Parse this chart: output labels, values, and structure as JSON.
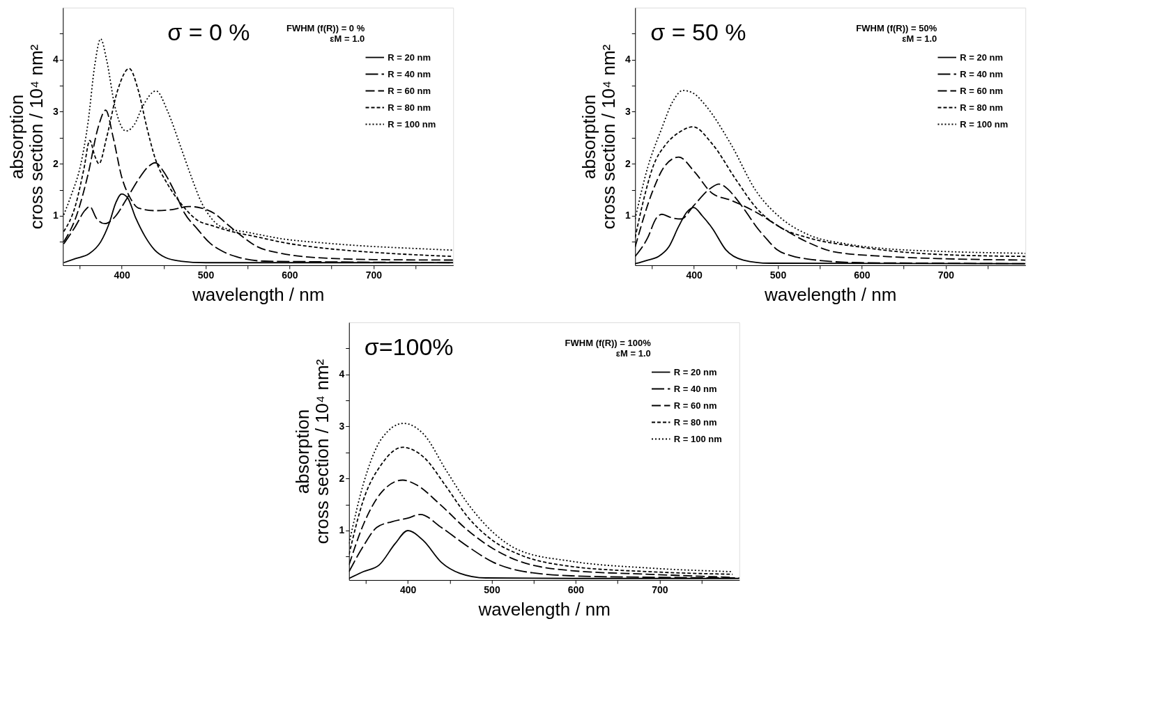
{
  "chart_data": [
    {
      "type": "line",
      "xlabel": "wavelength / nm",
      "ylabel": "absorption\ncross section / 10⁴ nm²",
      "legend_title": "FWHM (f(R))  =  0 %\nεM  =  1.0",
      "annotations": [
        "σ = 0 %"
      ],
      "legend": "top right",
      "grid": false,
      "xlim": [
        330,
        795
      ],
      "ylim": [
        0.05,
        5.0
      ],
      "xticks": [
        {
          "value": 350,
          "label": null
        },
        400,
        {
          "value": 450,
          "label": null
        },
        500,
        {
          "value": 550,
          "label": null
        },
        600,
        {
          "value": 650,
          "label": null
        },
        700,
        {
          "value": 750,
          "label": null
        }
      ],
      "yticks": [
        {
          "value": 0.5,
          "label": null
        },
        1,
        {
          "value": 1.5,
          "label": null
        },
        2,
        {
          "value": 2.5,
          "label": null
        },
        3,
        {
          "value": 3.5,
          "label": null
        },
        4,
        {
          "value": 4.5,
          "label": null
        }
      ],
      "series": [
        {
          "name": "R = 20 nm",
          "color": "#000000",
          "line_style": "solid",
          "x": [
            331,
            345,
            361,
            375,
            385,
            393,
            400,
            407,
            417,
            428,
            439,
            452,
            470,
            500,
            600,
            795
          ],
          "values": [
            0.1,
            0.18,
            0.27,
            0.5,
            0.85,
            1.25,
            1.42,
            1.35,
            0.95,
            0.6,
            0.35,
            0.2,
            0.13,
            0.1,
            0.1,
            0.1
          ]
        },
        {
          "name": "R = 40 nm",
          "color": "#000000",
          "line_style": "dashed",
          "x": [
            331,
            345,
            356,
            362,
            370,
            380,
            393,
            405,
            420,
            432,
            440,
            450,
            462,
            475,
            490,
            505,
            520,
            540,
            570,
            620,
            795
          ],
          "values": [
            0.46,
            0.8,
            1.1,
            1.18,
            0.95,
            0.85,
            1.0,
            1.3,
            1.7,
            1.95,
            2.02,
            1.85,
            1.5,
            1.05,
            0.75,
            0.48,
            0.32,
            0.2,
            0.13,
            0.12,
            0.1
          ]
        },
        {
          "name": "R = 60 nm",
          "color": "#000000",
          "line_style": "dashed",
          "x": [
            331,
            345,
            360,
            372,
            381,
            390,
            400,
            410,
            420,
            440,
            460,
            480,
            495,
            510,
            525,
            540,
            560,
            590,
            630,
            700,
            795
          ],
          "values": [
            0.5,
            0.95,
            1.8,
            2.7,
            3.03,
            2.5,
            1.75,
            1.35,
            1.15,
            1.1,
            1.12,
            1.18,
            1.15,
            1.05,
            0.85,
            0.65,
            0.42,
            0.28,
            0.2,
            0.16,
            0.15
          ]
        },
        {
          "name": "R = 80 nm",
          "color": "#000000",
          "line_style": "dashed",
          "x": [
            331,
            345,
            355,
            362,
            368,
            373,
            382,
            395,
            409,
            420,
            430,
            440,
            455,
            470,
            489,
            510,
            533,
            560,
            595,
            640,
            690,
            740,
            795
          ],
          "values": [
            0.7,
            1.2,
            1.9,
            2.45,
            2.15,
            2.0,
            2.5,
            3.4,
            3.83,
            3.4,
            2.7,
            2.1,
            1.6,
            1.25,
            0.93,
            0.8,
            0.69,
            0.6,
            0.48,
            0.38,
            0.31,
            0.26,
            0.22
          ]
        },
        {
          "name": "R = 100 nm",
          "color": "#000000",
          "line_style": "dotted",
          "x": [
            331,
            340,
            351,
            360,
            368,
            375,
            382,
            392,
            405,
            415,
            425,
            441,
            455,
            470,
            483,
            495,
            507,
            520,
            548,
            595,
            640,
            690,
            740,
            795
          ],
          "values": [
            1.02,
            1.4,
            1.97,
            2.8,
            3.9,
            4.4,
            4.0,
            3.1,
            2.63,
            2.75,
            3.1,
            3.4,
            3.0,
            2.34,
            1.75,
            1.26,
            0.95,
            0.78,
            0.69,
            0.55,
            0.48,
            0.42,
            0.38,
            0.34
          ]
        }
      ]
    },
    {
      "type": "line",
      "xlabel": "wavelength / nm",
      "ylabel": "absorption\ncross section / 10⁴ nm²",
      "legend_title": "FWHM (f(R))  =  50%\nεM  =  1.0",
      "annotations": [
        "σ = 50 %"
      ],
      "legend": "top right",
      "grid": false,
      "xlim": [
        330,
        795
      ],
      "ylim": [
        0.05,
        5.0
      ],
      "xticks": [
        {
          "value": 350,
          "label": null
        },
        400,
        {
          "value": 450,
          "label": null
        },
        500,
        {
          "value": 550,
          "label": null
        },
        600,
        {
          "value": 650,
          "label": null
        },
        700,
        {
          "value": 750,
          "label": null
        }
      ],
      "yticks": [
        {
          "value": 0.5,
          "label": null
        },
        1,
        {
          "value": 1.5,
          "label": null
        },
        2,
        {
          "value": 2.5,
          "label": null
        },
        3,
        {
          "value": 3.5,
          "label": null
        },
        4,
        {
          "value": 4.5,
          "label": null
        }
      ],
      "series": [
        {
          "name": "R = 20 nm",
          "color": "#000000",
          "line_style": "solid",
          "x": [
            330,
            345,
            358,
            370,
            382,
            392,
            400,
            410,
            422,
            438,
            459,
            490,
            795
          ],
          "values": [
            0.08,
            0.15,
            0.22,
            0.4,
            0.8,
            1.08,
            1.16,
            1.0,
            0.76,
            0.35,
            0.15,
            0.09,
            0.08
          ]
        },
        {
          "name": "R = 40 nm",
          "color": "#000000",
          "line_style": "dashed",
          "x": [
            330,
            345,
            355,
            362,
            372,
            385,
            400,
            419,
            430,
            440,
            450,
            462,
            474,
            487,
            499,
            515,
            536,
            598,
            700,
            795
          ],
          "values": [
            0.22,
            0.58,
            0.95,
            1.03,
            0.97,
            0.94,
            1.2,
            1.52,
            1.61,
            1.52,
            1.34,
            1.08,
            0.8,
            0.55,
            0.35,
            0.24,
            0.17,
            0.1,
            0.09,
            0.08
          ]
        },
        {
          "name": "R = 60 nm",
          "color": "#000000",
          "line_style": "dashed",
          "x": [
            330,
            351,
            365,
            382,
            401,
            422,
            444,
            474,
            505,
            536,
            567,
            628,
            690,
            795
          ],
          "values": [
            0.4,
            1.48,
            1.95,
            2.13,
            1.84,
            1.43,
            1.3,
            1.07,
            0.76,
            0.49,
            0.31,
            0.22,
            0.18,
            0.15
          ]
        },
        {
          "name": "R = 80 nm",
          "color": "#000000",
          "line_style": "dashed",
          "x": [
            330,
            340,
            351,
            367,
            382,
            399,
            422,
            450,
            474,
            505,
            536,
            598,
            690,
            795
          ],
          "values": [
            0.58,
            1.3,
            1.93,
            2.38,
            2.6,
            2.71,
            2.38,
            1.7,
            1.16,
            0.76,
            0.58,
            0.4,
            0.26,
            0.22
          ]
        },
        {
          "name": "R = 100 nm",
          "color": "#000000",
          "line_style": "dotted",
          "x": [
            330,
            345,
            361,
            375,
            387,
            400,
            413,
            444,
            474,
            505,
            536,
            582,
            628,
            690,
            795
          ],
          "values": [
            0.94,
            1.93,
            2.65,
            3.2,
            3.41,
            3.35,
            3.14,
            2.38,
            1.48,
            0.94,
            0.64,
            0.46,
            0.37,
            0.32,
            0.28
          ]
        }
      ]
    },
    {
      "type": "line",
      "xlabel": "wavelength / nm",
      "ylabel": "absorption\ncross section / 10⁴ nm²",
      "legend_title": "FWHM (f(R))  =  100%\nεM  =  1.0",
      "annotations": [
        "σ=100%"
      ],
      "legend": "top right",
      "grid": false,
      "xlim": [
        330,
        795
      ],
      "ylim": [
        0.05,
        5.0
      ],
      "xticks": [
        {
          "value": 350,
          "label": null
        },
        400,
        {
          "value": 450,
          "label": null
        },
        500,
        {
          "value": 550,
          "label": null
        },
        600,
        {
          "value": 650,
          "label": null
        },
        700,
        {
          "value": 750,
          "label": null
        }
      ],
      "yticks": [
        {
          "value": 0.5,
          "label": null
        },
        1,
        {
          "value": 1.5,
          "label": null
        },
        2,
        {
          "value": 2.5,
          "label": null
        },
        3,
        {
          "value": 3.5,
          "label": null
        },
        4,
        {
          "value": 4.5,
          "label": null
        }
      ],
      "series": [
        {
          "name": "R = 20 nm",
          "color": "#000000",
          "line_style": "solid",
          "x": [
            330,
            347,
            366,
            385,
            400,
            419,
            440,
            462,
            493,
            600,
            795
          ],
          "values": [
            0.08,
            0.21,
            0.34,
            0.75,
            1.0,
            0.8,
            0.39,
            0.18,
            0.09,
            0.08,
            0.08
          ]
        },
        {
          "name": "R = 40 nm",
          "color": "#000000",
          "line_style": "dashed",
          "x": [
            330,
            347,
            363,
            381,
            400,
            415,
            440,
            471,
            502,
            533,
            595,
            700,
            795
          ],
          "values": [
            0.21,
            0.7,
            1.06,
            1.17,
            1.24,
            1.31,
            1.06,
            0.7,
            0.39,
            0.23,
            0.13,
            0.1,
            0.09
          ]
        },
        {
          "name": "R = 60 nm",
          "color": "#000000",
          "line_style": "dashed",
          "x": [
            330,
            347,
            369,
            394,
            409,
            440,
            471,
            502,
            533,
            595,
            688,
            787
          ],
          "values": [
            0.34,
            1.11,
            1.74,
            1.97,
            1.89,
            1.48,
            1.01,
            0.65,
            0.41,
            0.23,
            0.16,
            0.1
          ]
        },
        {
          "name": "R = 80 nm",
          "color": "#000000",
          "line_style": "dashed",
          "x": [
            330,
            347,
            369,
            394,
            419,
            446,
            471,
            502,
            533,
            595,
            688,
            787
          ],
          "values": [
            0.54,
            1.58,
            2.28,
            2.6,
            2.41,
            1.84,
            1.27,
            0.8,
            0.54,
            0.31,
            0.21,
            0.16
          ]
        },
        {
          "name": "R = 100 nm",
          "color": "#000000",
          "line_style": "dotted",
          "x": [
            330,
            347,
            369,
            395,
            419,
            446,
            471,
            502,
            533,
            595,
            688,
            787
          ],
          "values": [
            0.75,
            1.89,
            2.77,
            3.06,
            2.85,
            2.15,
            1.53,
            0.96,
            0.62,
            0.41,
            0.28,
            0.21
          ]
        }
      ]
    }
  ]
}
